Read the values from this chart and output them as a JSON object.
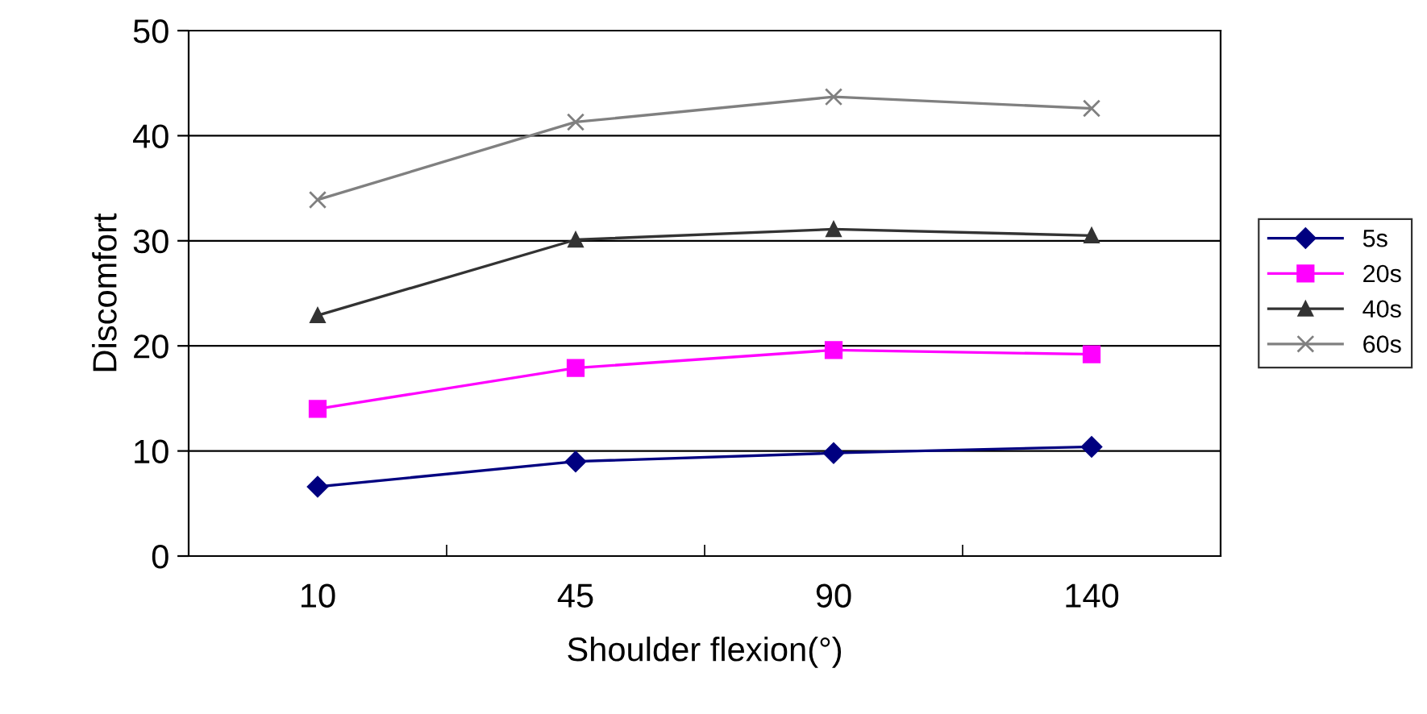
{
  "chart_data": {
    "type": "line",
    "xlabel": "Shoulder flexion(°)",
    "ylabel": "Discomfort",
    "categories": [
      "10",
      "45",
      "90",
      "140"
    ],
    "series": [
      {
        "name": "5s",
        "color": "#000080",
        "marker": "diamond",
        "values": [
          6.6,
          9.0,
          9.8,
          10.4
        ]
      },
      {
        "name": "20s",
        "color": "#ff00ff",
        "marker": "square",
        "values": [
          14.0,
          17.9,
          19.6,
          19.2
        ]
      },
      {
        "name": "40s",
        "color": "#333333",
        "marker": "triangle",
        "values": [
          22.9,
          30.1,
          31.1,
          30.5
        ]
      },
      {
        "name": "60s",
        "color": "#808080",
        "marker": "cross",
        "values": [
          33.9,
          41.3,
          43.7,
          42.6
        ]
      }
    ],
    "ylim": [
      0,
      50
    ],
    "yticks": [
      0,
      10,
      20,
      30,
      40,
      50
    ],
    "grid": "y",
    "legend": "right"
  }
}
